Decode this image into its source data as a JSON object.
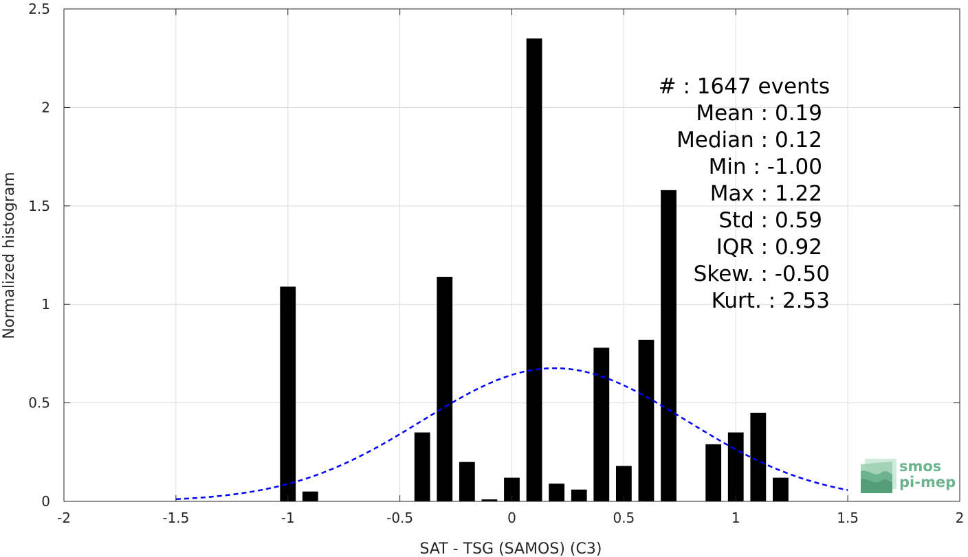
{
  "chart_data": {
    "type": "bar",
    "xlabel": "SAT - TSG (SAMOS) (C3)",
    "ylabel": "Normalized histogram",
    "xlim": [
      -2,
      2
    ],
    "ylim": [
      0,
      2.5
    ],
    "xticks": [
      -2,
      -1.5,
      -1,
      -0.5,
      0,
      0.5,
      1,
      1.5,
      2
    ],
    "xtick_labels": [
      "-2",
      "-1.5",
      "-1",
      "-0.5",
      "0",
      "0.5",
      "1",
      "1.5",
      "2"
    ],
    "yticks": [
      0,
      0.5,
      1,
      1.5,
      2,
      2.5
    ],
    "ytick_labels": [
      "0",
      "0.5",
      "1",
      "1.5",
      "2",
      "2.5"
    ],
    "grid": true,
    "bar_color": "#000000",
    "bar_width": 0.07,
    "bars": [
      {
        "x": -1.0,
        "value": 1.09
      },
      {
        "x": -0.9,
        "value": 0.05
      },
      {
        "x": -0.4,
        "value": 0.35
      },
      {
        "x": -0.3,
        "value": 1.14
      },
      {
        "x": -0.2,
        "value": 0.2
      },
      {
        "x": -0.1,
        "value": 0.01
      },
      {
        "x": 0.0,
        "value": 0.12
      },
      {
        "x": 0.1,
        "value": 2.35
      },
      {
        "x": 0.2,
        "value": 0.09
      },
      {
        "x": 0.3,
        "value": 0.06
      },
      {
        "x": 0.4,
        "value": 0.78
      },
      {
        "x": 0.5,
        "value": 0.18
      },
      {
        "x": 0.6,
        "value": 0.82
      },
      {
        "x": 0.7,
        "value": 1.58
      },
      {
        "x": 0.9,
        "value": 0.29
      },
      {
        "x": 1.0,
        "value": 0.35
      },
      {
        "x": 1.1,
        "value": 0.45
      },
      {
        "x": 1.2,
        "value": 0.12
      }
    ],
    "fit_curve": {
      "kind": "gaussian",
      "style": "dashed",
      "color": "#0000ff",
      "mean": 0.19,
      "std": 0.59,
      "x_range": [
        -1.5,
        1.5
      ]
    },
    "annotation": {
      "lines": [
        "#  : 1647 events",
        "Mean : 0.19",
        "Median : 0.12",
        "Min : -1.00",
        "Max : 1.22",
        "Std : 0.59",
        "IQR : 0.92",
        "Skew. : -0.50",
        "Kurt. : 2.53"
      ]
    }
  },
  "logo": {
    "line1": "smos",
    "line2": "pi-mep",
    "color": "#6db38d"
  }
}
